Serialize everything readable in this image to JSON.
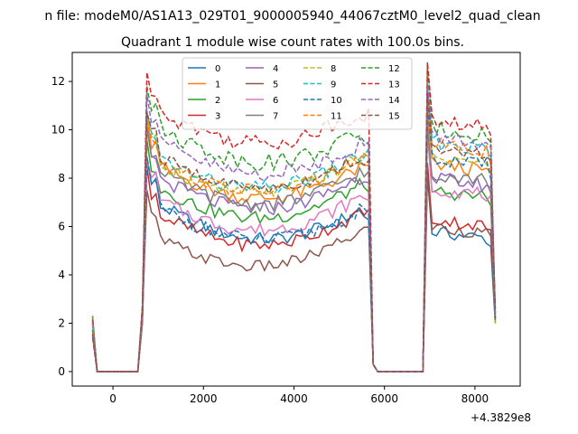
{
  "chart_data": {
    "type": "line",
    "title": "Quadrant 1 module wise count rates with 100.0s bins.",
    "suptitle": "n file: modeM0/AS1A13_029T01_9000005940_44067cztM0_level2_quad_clean",
    "xlabel": "",
    "ylabel": "",
    "x_offset_label": "+4.3829e8",
    "xlim": [
      -900,
      9000
    ],
    "ylim": [
      -0.6,
      13.2
    ],
    "xticks": [
      0,
      2000,
      4000,
      6000,
      8000
    ],
    "xtick_labels": [
      "0",
      "2000",
      "4000",
      "6000",
      "8000"
    ],
    "yticks": [
      0,
      2,
      4,
      6,
      8,
      10,
      12
    ],
    "ytick_labels": [
      "0",
      "2",
      "4",
      "6",
      "8",
      "10",
      "12"
    ],
    "grid": false,
    "legend_position": "top-center",
    "legend_columns": 4,
    "x_start": -450,
    "x_step": 100,
    "series": [
      {
        "name": "0",
        "color": "#1f77b4",
        "dash": "solid",
        "level": 6.4,
        "final": 6.0,
        "post_level": 5.8,
        "amp": 0.28,
        "seed": 1
      },
      {
        "name": "1",
        "color": "#ff7f0e",
        "dash": "solid",
        "level": 8.0,
        "final": 7.9,
        "post_level": 8.6,
        "amp": 0.3,
        "seed": 2
      },
      {
        "name": "2",
        "color": "#2ca02c",
        "dash": "solid",
        "level": 7.1,
        "final": 7.3,
        "post_level": 7.5,
        "amp": 0.3,
        "seed": 3
      },
      {
        "name": "3",
        "color": "#d62728",
        "dash": "solid",
        "level": 6.0,
        "final": 6.1,
        "post_level": 6.3,
        "amp": 0.28,
        "seed": 4
      },
      {
        "name": "4",
        "color": "#9467bd",
        "dash": "solid",
        "level": 7.5,
        "final": 7.6,
        "post_level": 8.0,
        "amp": 0.3,
        "seed": 5
      },
      {
        "name": "5",
        "color": "#8c564b",
        "dash": "solid",
        "level": 5.0,
        "final": 5.5,
        "post_level": 6.0,
        "amp": 0.25,
        "seed": 6
      },
      {
        "name": "6",
        "color": "#e377c2",
        "dash": "solid",
        "level": 6.6,
        "final": 6.8,
        "post_level": 7.6,
        "amp": 0.3,
        "seed": 7
      },
      {
        "name": "7",
        "color": "#7f7f7f",
        "dash": "solid",
        "level": 7.7,
        "final": 7.8,
        "post_level": 8.2,
        "amp": 0.3,
        "seed": 8
      },
      {
        "name": "8",
        "color": "#bcbd22",
        "dash": "dashed",
        "level": 8.1,
        "final": 8.5,
        "post_level": 8.9,
        "amp": 0.3,
        "seed": 9
      },
      {
        "name": "9",
        "color": "#17becf",
        "dash": "dashed",
        "level": 8.3,
        "final": 8.6,
        "post_level": 9.5,
        "amp": 0.3,
        "seed": 10
      },
      {
        "name": "10",
        "color": "#1f77b4",
        "dash": "dashed",
        "level": 6.3,
        "final": 6.1,
        "post_level": 8.8,
        "amp": 0.3,
        "seed": 11
      },
      {
        "name": "11",
        "color": "#ff7f0e",
        "dash": "dashed",
        "level": 8.2,
        "final": 8.4,
        "post_level": 9.4,
        "amp": 0.3,
        "seed": 12
      },
      {
        "name": "12",
        "color": "#2ca02c",
        "dash": "dashed",
        "level": 9.6,
        "final": 9.2,
        "post_level": 10.1,
        "amp": 0.35,
        "seed": 13
      },
      {
        "name": "13",
        "color": "#d62728",
        "dash": "dashed",
        "level": 10.3,
        "final": 10.2,
        "post_level": 10.4,
        "amp": 0.35,
        "seed": 14
      },
      {
        "name": "14",
        "color": "#9467bd",
        "dash": "dashed",
        "level": 9.0,
        "final": 8.9,
        "post_level": 9.7,
        "amp": 0.32,
        "seed": 15
      },
      {
        "name": "15",
        "color": "#8c564b",
        "dash": "dashed",
        "level": 8.4,
        "final": 8.4,
        "post_level": 9.2,
        "amp": 0.3,
        "seed": 16
      }
    ]
  }
}
